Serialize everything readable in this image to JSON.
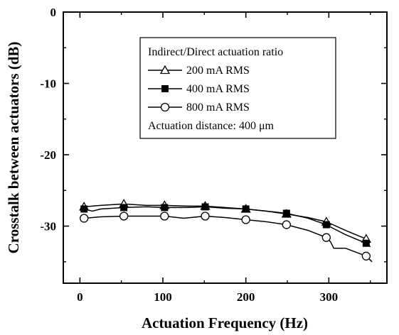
{
  "chart_data": {
    "type": "line",
    "title": "",
    "xlabel": "Actuation Frequency (Hz)",
    "ylabel": "Crosstalk between actuators (dB)",
    "xlim": [
      -20,
      370
    ],
    "ylim": [
      -38,
      0
    ],
    "xticks": [
      0,
      100,
      200,
      300
    ],
    "xtick_labels": [
      "0",
      "100",
      "200",
      "300"
    ],
    "yticks": [
      0,
      -10,
      -20,
      -30
    ],
    "ytick_labels": [
      "0",
      "-10",
      "-20",
      "-30"
    ],
    "grid": false,
    "legend_title": "Indirect/Direct actuation ratio",
    "legend_note": "Actuation distance: 400 μm",
    "legend_position": "top-right",
    "series": [
      {
        "name": "200 mA RMS",
        "marker": "open-triangle",
        "marker_x": [
          5,
          53,
          102,
          151,
          200,
          249,
          297,
          345
        ],
        "marker_y": [
          -27.3,
          -26.9,
          -27.1,
          -27.2,
          -27.6,
          -28.3,
          -29.4,
          -31.8
        ],
        "line_x": [
          5,
          25,
          53,
          80,
          102,
          130,
          151,
          175,
          200,
          225,
          249,
          275,
          297,
          320,
          345,
          350
        ],
        "line_y": [
          -27.3,
          -27.1,
          -26.9,
          -27.1,
          -27.1,
          -27.2,
          -27.2,
          -27.4,
          -27.6,
          -27.9,
          -28.3,
          -28.8,
          -29.4,
          -30.6,
          -31.8,
          -32.3
        ]
      },
      {
        "name": "400 mA RMS",
        "marker": "filled-square",
        "marker_x": [
          5,
          53,
          102,
          151,
          200,
          249,
          297,
          345
        ],
        "marker_y": [
          -27.6,
          -27.4,
          -27.4,
          -27.3,
          -27.6,
          -28.2,
          -29.8,
          -32.4
        ],
        "line_x": [
          5,
          15,
          25,
          53,
          80,
          102,
          130,
          151,
          175,
          200,
          225,
          249,
          275,
          297,
          305,
          320,
          345,
          350
        ],
        "line_y": [
          -27.6,
          -27.9,
          -27.6,
          -27.4,
          -27.3,
          -27.4,
          -27.4,
          -27.3,
          -27.5,
          -27.6,
          -27.9,
          -28.2,
          -28.9,
          -29.8,
          -30.3,
          -31.2,
          -32.4,
          -32.9
        ]
      },
      {
        "name": "800 mA RMS",
        "marker": "open-circle",
        "marker_x": [
          5,
          53,
          102,
          151,
          200,
          249,
          297,
          345
        ],
        "marker_y": [
          -28.9,
          -28.6,
          -28.6,
          -28.6,
          -29.1,
          -29.8,
          -31.6,
          -34.2
        ],
        "line_x": [
          5,
          25,
          53,
          80,
          102,
          125,
          151,
          175,
          200,
          225,
          249,
          275,
          297,
          302,
          306,
          320,
          345,
          352
        ],
        "line_y": [
          -28.9,
          -28.7,
          -28.6,
          -28.6,
          -28.6,
          -28.9,
          -28.6,
          -28.8,
          -29.1,
          -29.4,
          -29.8,
          -30.6,
          -31.6,
          -32.2,
          -33.1,
          -33.1,
          -34.2,
          -35.0
        ]
      }
    ]
  }
}
